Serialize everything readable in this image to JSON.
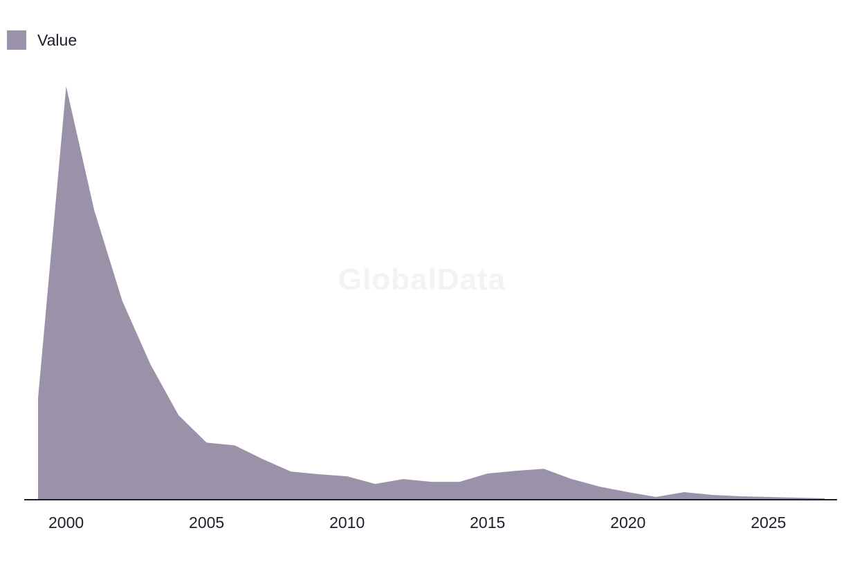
{
  "legend": {
    "label": "Value",
    "color": "#9b92aa"
  },
  "watermark": "GlobalData",
  "colors": {
    "area": "#9b92aa",
    "axis": "#1f1d2b",
    "text": "#1f1d2b"
  },
  "chart_data": {
    "type": "area",
    "x": [
      1999,
      2000,
      2001,
      2002,
      2003,
      2004,
      2005,
      2006,
      2007,
      2008,
      2009,
      2010,
      2011,
      2012,
      2013,
      2014,
      2015,
      2016,
      2017,
      2018,
      2019,
      2020,
      2021,
      2022,
      2023,
      2024,
      2025,
      2026,
      2027
    ],
    "series": [
      {
        "name": "Value",
        "values": [
          147,
          600,
          420,
          288,
          196,
          122,
          82,
          78,
          58,
          40,
          36,
          33,
          22,
          29,
          25,
          25,
          37,
          41,
          44,
          29,
          18,
          10,
          3,
          10,
          6,
          4,
          3,
          2,
          1
        ]
      }
    ],
    "xticks": [
      "2000",
      "2005",
      "2010",
      "2015",
      "2020",
      "2025"
    ],
    "xlim": [
      1999,
      2027
    ],
    "ylim": [
      0,
      600
    ],
    "yaxis_visible": false,
    "grid": false,
    "legend_position": "top-left"
  }
}
